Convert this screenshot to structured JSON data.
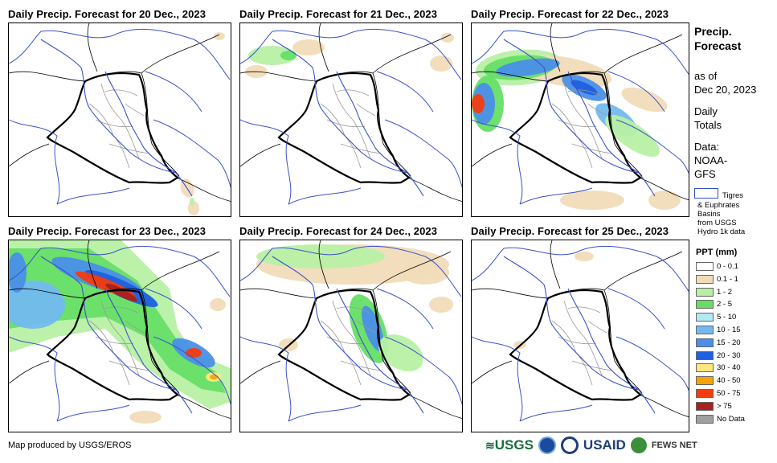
{
  "panels": [
    {
      "title": "Daily Precip. Forecast for 20 Dec., 2023"
    },
    {
      "title": "Daily Precip. Forecast for 21 Dec., 2023"
    },
    {
      "title": "Daily Precip. Forecast for 22 Dec., 2023"
    },
    {
      "title": "Daily Precip. Forecast for 23 Dec., 2023"
    },
    {
      "title": "Daily Precip. Forecast for 24 Dec., 2023"
    },
    {
      "title": "Daily Precip. Forecast for 25 Dec., 2023"
    }
  ],
  "sidebar": {
    "heading_line1": "Precip.",
    "heading_line2": "Forecast",
    "asof_line1": "as of",
    "asof_line2": "Dec 20, 2023",
    "daily_line1": "Daily",
    "daily_line2": "Totals",
    "data_line1": "Data:",
    "data_line2": "NOAA-",
    "data_line3": "GFS",
    "basin_line1": "Tigres",
    "basin_line2": "& Euphrates",
    "basin_line3": "Basins",
    "basin_line4": "from USGS",
    "basin_line5": "Hydro 1k data"
  },
  "legend": {
    "title": "PPT (mm)",
    "items": [
      {
        "label": "0 - 0.1",
        "color": "#ffffff"
      },
      {
        "label": "0.1 - 1",
        "color": "#f1dcb8"
      },
      {
        "label": "1 - 2",
        "color": "#b7f0a4"
      },
      {
        "label": "2 - 5",
        "color": "#66de66"
      },
      {
        "label": "5 - 10",
        "color": "#b3e8f5"
      },
      {
        "label": "10 - 15",
        "color": "#73b9f0"
      },
      {
        "label": "15 - 20",
        "color": "#4a8fe8"
      },
      {
        "label": "20 - 30",
        "color": "#1f5fe0"
      },
      {
        "label": "30 - 40",
        "color": "#ffe780"
      },
      {
        "label": "40 - 50",
        "color": "#f7a400"
      },
      {
        "label": "50 - 75",
        "color": "#f23c0f"
      },
      {
        "label": "> 75",
        "color": "#a8201f"
      },
      {
        "label": "No Data",
        "color": "#a0a0a0"
      }
    ]
  },
  "footer": {
    "credit": "Map produced by USGS/EROS",
    "logo_usgs": "USGS",
    "logo_usaid": "USAID",
    "logo_fews": "FEWS NET"
  }
}
